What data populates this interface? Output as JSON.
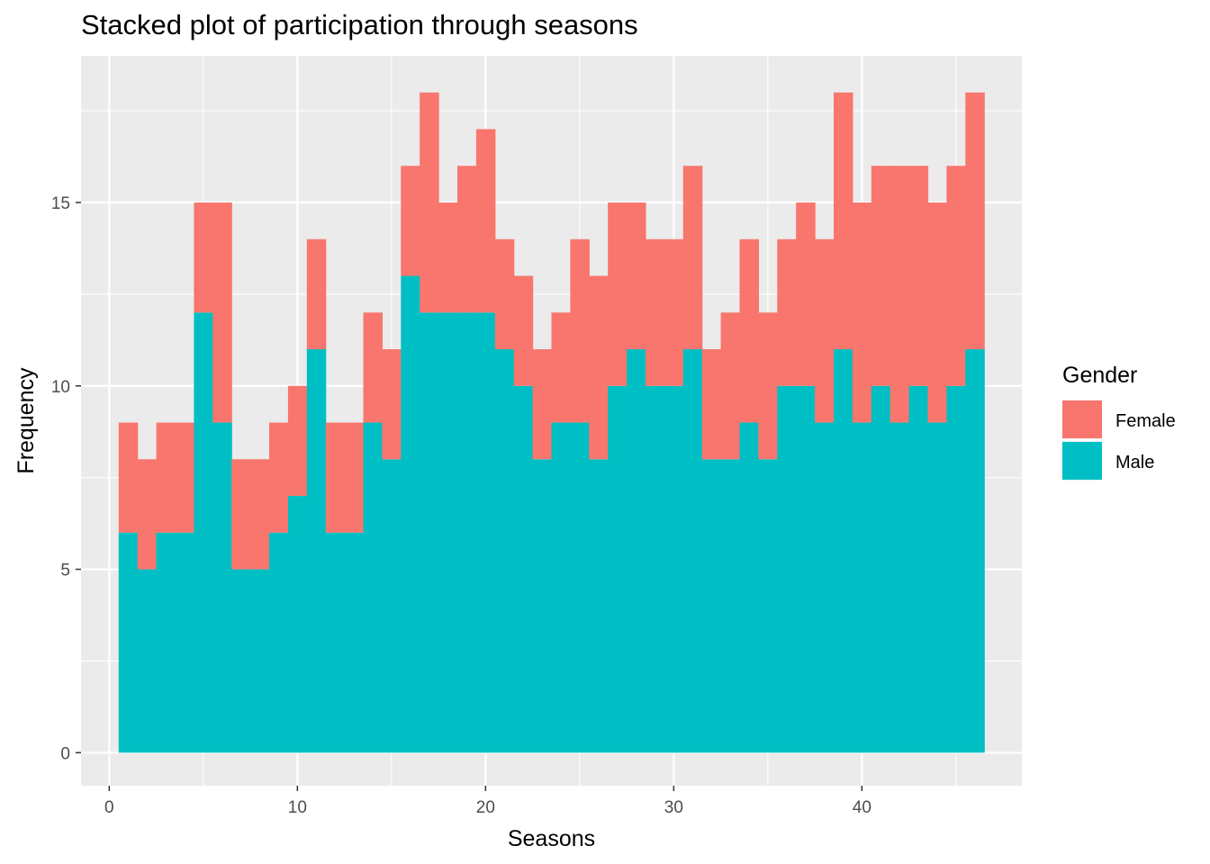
{
  "chart_data": {
    "type": "bar",
    "stacked": true,
    "title": "Stacked plot of participation through seasons",
    "xlabel": "Seasons",
    "ylabel": "Frequency",
    "xlim": [
      -1.5,
      48.5
    ],
    "ylim": [
      -0.9,
      19.0
    ],
    "x_ticks": [
      0,
      10,
      20,
      30,
      40
    ],
    "y_ticks": [
      0,
      5,
      10,
      15
    ],
    "grid": true,
    "legend": {
      "title": "Gender",
      "position": "right"
    },
    "x": [
      1,
      2,
      3,
      4,
      5,
      6,
      7,
      8,
      9,
      10,
      11,
      12,
      13,
      14,
      15,
      16,
      17,
      18,
      19,
      20,
      21,
      22,
      23,
      24,
      25,
      26,
      27,
      28,
      29,
      30,
      31,
      32,
      33,
      34,
      35,
      36,
      37,
      38,
      39,
      40,
      41,
      42,
      43,
      44,
      45,
      46
    ],
    "series": [
      {
        "name": "Male",
        "color": "#00BFC4",
        "values": [
          6,
          5,
          6,
          6,
          12,
          9,
          5,
          5,
          6,
          7,
          11,
          6,
          6,
          9,
          8,
          13,
          12,
          12,
          12,
          12,
          11,
          10,
          8,
          9,
          9,
          8,
          10,
          11,
          10,
          10,
          11,
          8,
          8,
          9,
          8,
          10,
          10,
          9,
          11,
          9,
          10,
          9,
          10,
          9,
          10,
          11
        ]
      },
      {
        "name": "Female",
        "color": "#F8766D",
        "values": [
          3,
          3,
          3,
          3,
          3,
          6,
          3,
          3,
          3,
          3,
          3,
          3,
          3,
          3,
          3,
          3,
          6,
          3,
          4,
          5,
          3,
          3,
          3,
          3,
          5,
          5,
          5,
          4,
          4,
          4,
          5,
          3,
          4,
          5,
          4,
          4,
          5,
          5,
          7,
          6,
          6,
          7,
          6,
          6,
          6,
          7
        ]
      }
    ]
  }
}
